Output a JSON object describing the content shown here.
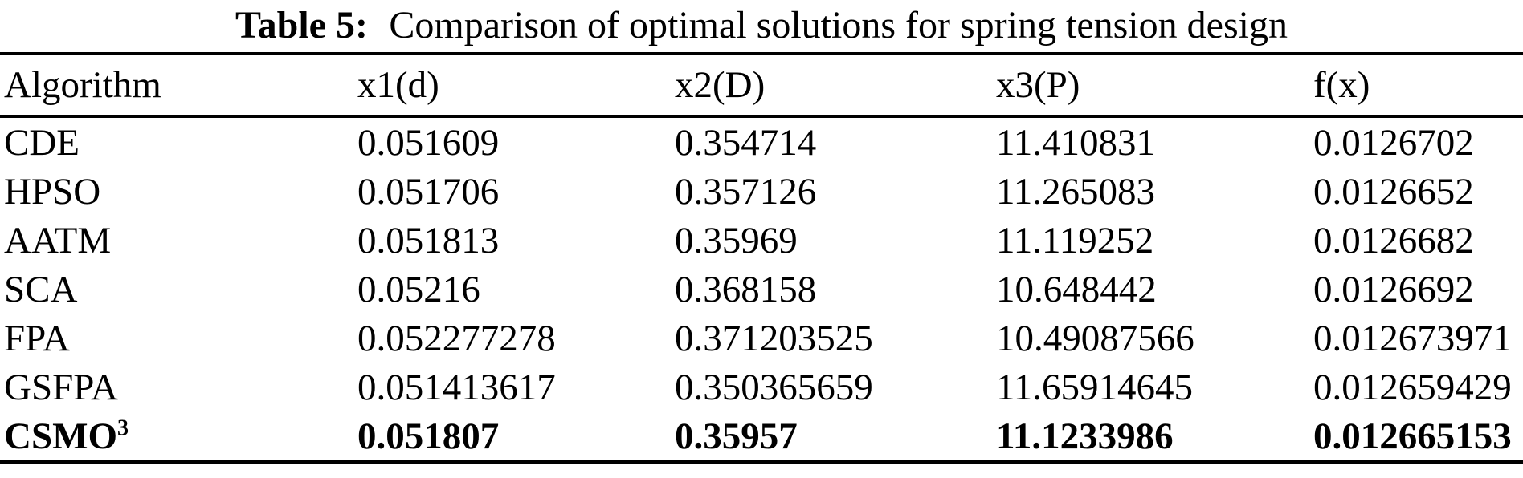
{
  "caption": {
    "label": "Table 5:",
    "text": "Comparison of optimal solutions for spring tension design"
  },
  "table": {
    "columns": [
      "Algorithm",
      "x1(d)",
      "x2(D)",
      "x3(P)",
      "f(x)"
    ],
    "rows": [
      {
        "algorithm": "CDE",
        "sup": "",
        "x1": "0.051609",
        "x2": "0.354714",
        "x3": "11.410831",
        "fx": "0.0126702",
        "bold": false
      },
      {
        "algorithm": "HPSO",
        "sup": "",
        "x1": "0.051706",
        "x2": "0.357126",
        "x3": "11.265083",
        "fx": "0.0126652",
        "bold": false
      },
      {
        "algorithm": "AATM",
        "sup": "",
        "x1": "0.051813",
        "x2": "0.35969",
        "x3": "11.119252",
        "fx": "0.0126682",
        "bold": false
      },
      {
        "algorithm": "SCA",
        "sup": "",
        "x1": "0.05216",
        "x2": "0.368158",
        "x3": "10.648442",
        "fx": "0.0126692",
        "bold": false
      },
      {
        "algorithm": "FPA",
        "sup": "",
        "x1": "0.052277278",
        "x2": "0.371203525",
        "x3": "10.49087566",
        "fx": "0.012673971",
        "bold": false
      },
      {
        "algorithm": "GSFPA",
        "sup": "",
        "x1": "0.051413617",
        "x2": "0.350365659",
        "x3": "11.65914645",
        "fx": "0.012659429",
        "bold": false
      },
      {
        "algorithm": "CSMO",
        "sup": "3",
        "x1": "0.051807",
        "x2": "0.35957",
        "x3": "11.1233986",
        "fx": "0.012665153",
        "bold": true
      }
    ]
  },
  "colors": {
    "text": "#000000",
    "background": "#ffffff",
    "rule": "#000000"
  }
}
